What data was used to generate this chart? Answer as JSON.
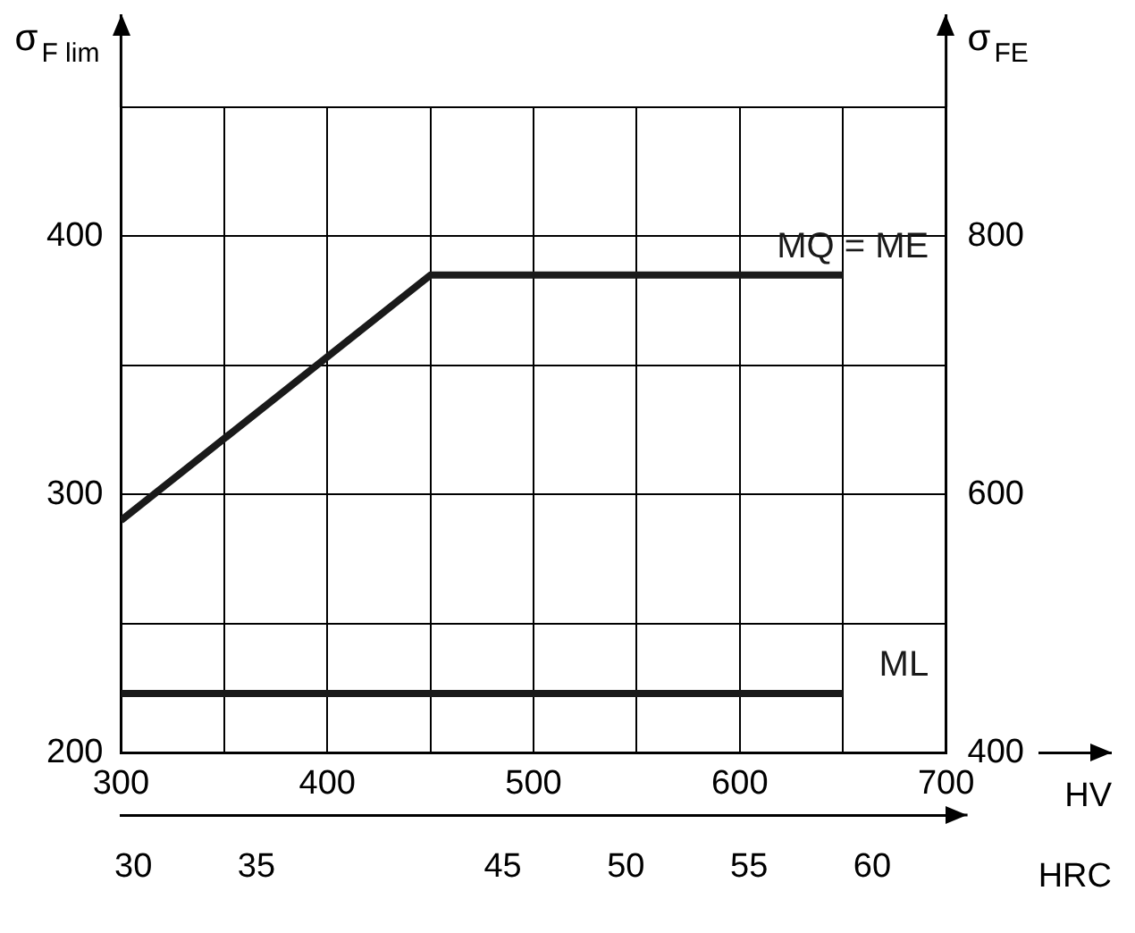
{
  "chart_data": {
    "type": "line",
    "ylabel": "σ$_{F lim}$",
    "y2label": "σ$_{FE}$",
    "xlabel": "HV",
    "x2label": "HRC",
    "xlim": [
      300,
      700
    ],
    "xticks": [
      300,
      {
        "value": 350,
        "label": null
      },
      400,
      {
        "value": 450,
        "label": null
      },
      500,
      {
        "value": 550,
        "label": null
      },
      600,
      {
        "value": 650,
        "label": null
      },
      700
    ],
    "ylim": [
      200,
      450
    ],
    "yticks": [
      200,
      {
        "value": 250,
        "label": null
      },
      300,
      {
        "value": 350,
        "label": null
      },
      400,
      {
        "value": 450,
        "label": null
      }
    ],
    "y2lim": [
      400,
      900
    ],
    "y2ticks": [
      400,
      600,
      800
    ],
    "x2lim": [
      29.5,
      63
    ],
    "x2ticks": [
      30,
      35,
      45,
      50,
      55,
      60
    ],
    "grid": true,
    "legend": false,
    "marker": "none",
    "line_style": "solid",
    "series": [
      {
        "name": "MQ = ME",
        "color": "#1a1a1a",
        "x": [
          300,
          450,
          650
        ],
        "values": [
          290,
          385,
          385
        ]
      },
      {
        "name": "ML",
        "color": "#1a1a1a",
        "x": [
          300,
          650
        ],
        "values": [
          223,
          223
        ]
      }
    ]
  }
}
